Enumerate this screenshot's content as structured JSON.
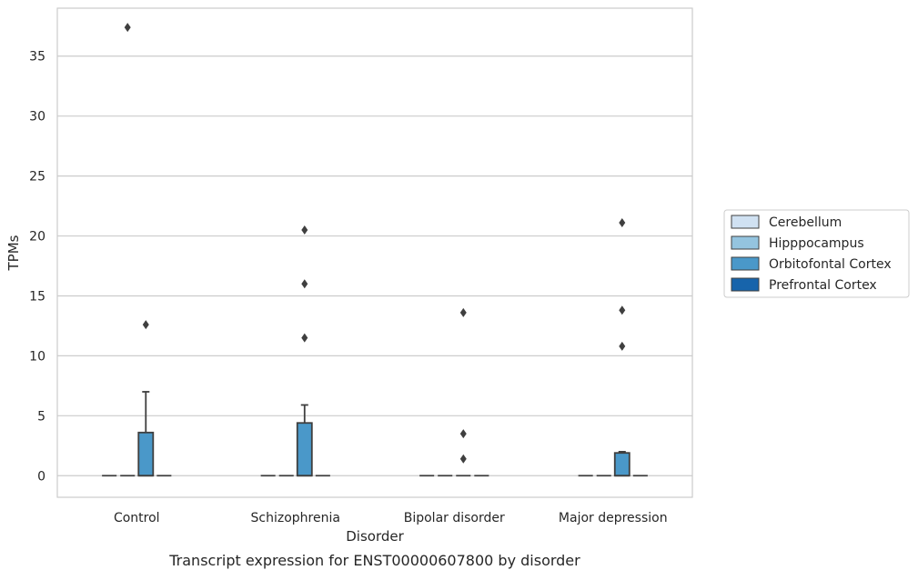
{
  "chart_data": {
    "type": "box",
    "title": "",
    "caption": "Transcript expression for ENST00000607800 by disorder",
    "xlabel": "Disorder",
    "ylabel": "TPMs",
    "categories": [
      "Control",
      "Schizophrenia",
      "Bipolar disorder",
      "Major depression"
    ],
    "ylim": [
      -1.8,
      39.0
    ],
    "yticks": [
      0,
      5,
      10,
      15,
      20,
      25,
      30,
      35
    ],
    "grid": "horizontal",
    "legend_position": "right",
    "series": [
      {
        "name": "Cerebellum",
        "color": "#d0e1f2",
        "boxes": [
          {
            "min": 0,
            "q1": 0,
            "median": 0,
            "q3": 0,
            "max": 0,
            "outliers": []
          },
          {
            "min": 0,
            "q1": 0,
            "median": 0,
            "q3": 0,
            "max": 0,
            "outliers": []
          },
          {
            "min": 0,
            "q1": 0,
            "median": 0,
            "q3": 0,
            "max": 0,
            "outliers": []
          },
          {
            "min": 0,
            "q1": 0,
            "median": 0,
            "q3": 0,
            "max": 0,
            "outliers": []
          }
        ]
      },
      {
        "name": "Hipppocampus",
        "color": "#94c4df",
        "boxes": [
          {
            "min": 0,
            "q1": 0,
            "median": 0,
            "q3": 0,
            "max": 0,
            "outliers": [
              37.4
            ]
          },
          {
            "min": 0,
            "q1": 0,
            "median": 0,
            "q3": 0,
            "max": 0,
            "outliers": []
          },
          {
            "min": 0,
            "q1": 0,
            "median": 0,
            "q3": 0,
            "max": 0,
            "outliers": []
          },
          {
            "min": 0,
            "q1": 0,
            "median": 0,
            "q3": 0,
            "max": 0,
            "outliers": []
          }
        ]
      },
      {
        "name": "Orbitofontal Cortex",
        "color": "#4a98c9",
        "boxes": [
          {
            "min": 0,
            "q1": 0,
            "median": 0,
            "q3": 3.6,
            "max": 7.0,
            "outliers": [
              12.6
            ]
          },
          {
            "min": 0,
            "q1": 0,
            "median": 0,
            "q3": 4.4,
            "max": 5.9,
            "outliers": [
              20.5,
              16.0,
              11.5
            ]
          },
          {
            "min": 0,
            "q1": 0,
            "median": 0,
            "q3": 0,
            "max": 0,
            "outliers": [
              13.6,
              3.5,
              1.4
            ]
          },
          {
            "min": 0,
            "q1": 0,
            "median": 0,
            "q3": 1.9,
            "max": 2.0,
            "outliers": [
              21.1,
              13.8,
              10.8
            ]
          }
        ]
      },
      {
        "name": "Prefrontal Cortex",
        "color": "#1764ab",
        "boxes": [
          {
            "min": 0,
            "q1": 0,
            "median": 0,
            "q3": 0,
            "max": 0,
            "outliers": []
          },
          {
            "min": 0,
            "q1": 0,
            "median": 0,
            "q3": 0,
            "max": 0,
            "outliers": []
          },
          {
            "min": 0,
            "q1": 0,
            "median": 0,
            "q3": 0,
            "max": 0,
            "outliers": []
          },
          {
            "min": 0,
            "q1": 0,
            "median": 0,
            "q3": 0,
            "max": 0,
            "outliers": []
          }
        ]
      }
    ]
  }
}
